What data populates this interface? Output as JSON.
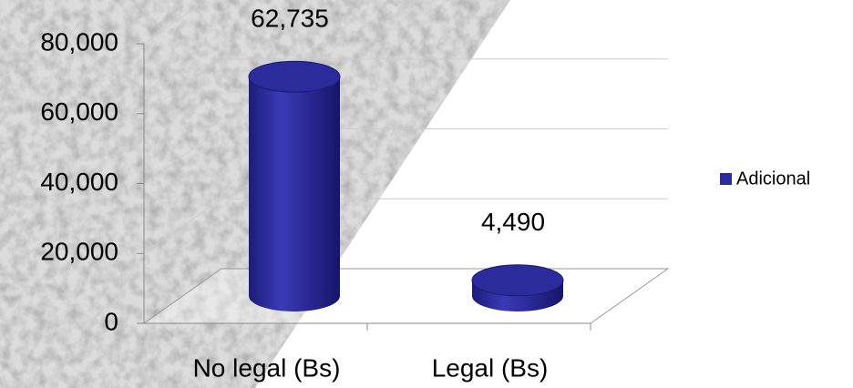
{
  "chart_data": {
    "type": "bar3d",
    "categories": [
      "No legal (Bs)",
      "Legal (Bs)"
    ],
    "series": [
      {
        "name": "Adicional",
        "color": "#2b2b9c",
        "values": [
          62735,
          4490
        ],
        "value_labels": [
          "62,735",
          "4,490"
        ]
      }
    ],
    "ylim": [
      0,
      80000
    ],
    "yticks": [
      0,
      {
        "value": 20000,
        "label": "20,000"
      },
      {
        "value": 40000,
        "label": "40,000"
      },
      {
        "value": 60000,
        "label": "60,000"
      },
      {
        "value": 80000,
        "label": "80,000"
      }
    ],
    "grid": true,
    "legend": "right"
  }
}
